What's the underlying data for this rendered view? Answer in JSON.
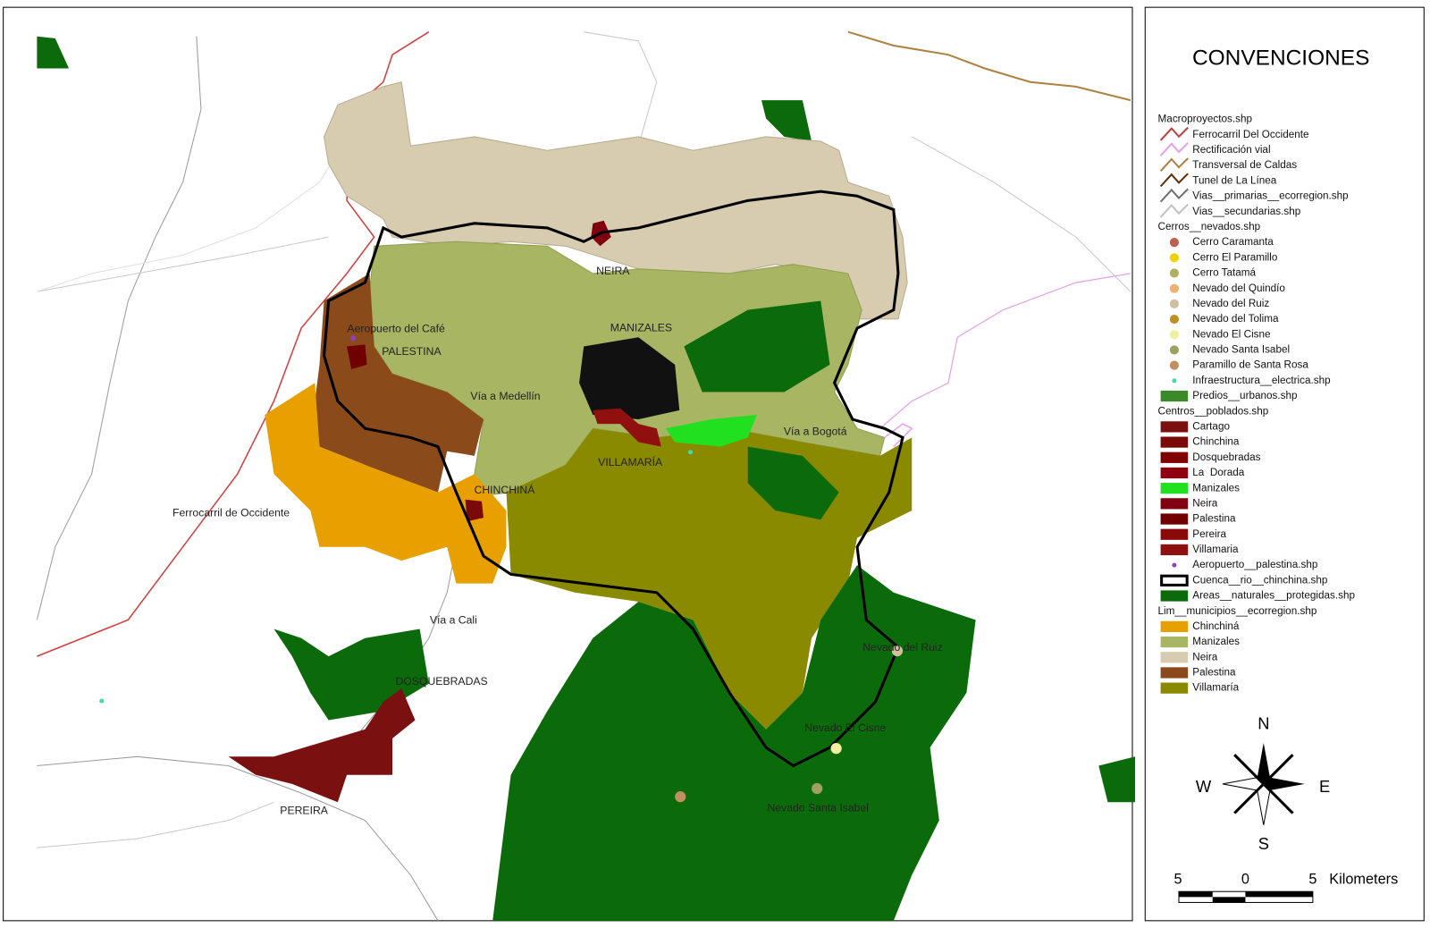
{
  "map": {
    "labels": [
      "NEIRA",
      "MANIZALES",
      "Aeropuerto del Café",
      "PALESTINA",
      "Vía a Medellín",
      "Vía a Bogotá",
      "VILLAMARÍA",
      "CHINCHINÁ",
      "Ferrocarril de Occidente",
      "Vía a Cali",
      "DOSQUEBRADAS",
      "Nevado del Ruiz",
      "Nevado El Cisne",
      "Nevado Santa Isabel",
      "PEREIRA"
    ]
  },
  "legend": {
    "title": "CONVENCIONES",
    "items": [
      {
        "text": "Macroproyectos.shp",
        "kind": "header"
      },
      {
        "text": "Ferrocarril Del Occidente",
        "kind": "line",
        "color": "#c04040"
      },
      {
        "text": "Rectificación vial",
        "kind": "line",
        "color": "#e8a0e8"
      },
      {
        "text": "Transversal de Caldas",
        "kind": "line",
        "color": "#b08040"
      },
      {
        "text": "Tunel de La Línea",
        "kind": "line",
        "color": "#603010"
      },
      {
        "text": "Vias__primarias__ecorregion.shp",
        "kind": "line",
        "color": "#707070"
      },
      {
        "text": "Vias__secundarias.shp",
        "kind": "line",
        "color": "#c0c0c0"
      },
      {
        "text": "Cerros__nevados.shp",
        "kind": "header"
      },
      {
        "text": "Cerro Caramanta",
        "kind": "dot",
        "color": "#c06050"
      },
      {
        "text": "Cerro El Paramillo",
        "kind": "dot",
        "color": "#f0d000"
      },
      {
        "text": "Cerro Tatamá",
        "kind": "dot",
        "color": "#b0b060"
      },
      {
        "text": "Nevado del Quindío",
        "kind": "dot",
        "color": "#f0b070"
      },
      {
        "text": "Nevado del Ruiz",
        "kind": "dot",
        "color": "#d0c0a0"
      },
      {
        "text": "Nevado del Tolima",
        "kind": "dot",
        "color": "#c09020"
      },
      {
        "text": "Nevado El Cisne",
        "kind": "dot",
        "color": "#f0f0a0"
      },
      {
        "text": "Nevado Santa Isabel",
        "kind": "dot",
        "color": "#a0a060"
      },
      {
        "text": "Paramillo de Santa Rosa",
        "kind": "dot",
        "color": "#c09060"
      },
      {
        "text": "Infraestructura__electrica.shp",
        "kind": "smalldot",
        "color": "#40e0a0"
      },
      {
        "text": "Predios__urbanos.shp",
        "kind": "box",
        "color": "#3a8a2a"
      },
      {
        "text": "Centros__poblados.shp",
        "kind": "header"
      },
      {
        "text": "Cartago",
        "kind": "box",
        "color": "#7a1010"
      },
      {
        "text": "Chinchina",
        "kind": "box",
        "color": "#7a0a0a"
      },
      {
        "text": "Dosquebradas",
        "kind": "box",
        "color": "#800000"
      },
      {
        "text": "La  Dorada",
        "kind": "box",
        "color": "#900010"
      },
      {
        "text": "Manizales",
        "kind": "box",
        "color": "#20e020"
      },
      {
        "text": "Neira",
        "kind": "box",
        "color": "#800010"
      },
      {
        "text": "Palestina",
        "kind": "box",
        "color": "#700000"
      },
      {
        "text": "Pereira",
        "kind": "box",
        "color": "#8a0a0a"
      },
      {
        "text": "Villamaria",
        "kind": "box",
        "color": "#901010"
      },
      {
        "text": "Aeropuerto__palestina.shp",
        "kind": "smalldot",
        "color": "#9040c0"
      },
      {
        "text": "Cuenca__rio__chinchina.shp",
        "kind": "outline",
        "color": "#000000"
      },
      {
        "text": "Areas__naturales__protegidas.shp",
        "kind": "box",
        "color": "#0b6b0b"
      },
      {
        "text": "Lim__municipios__ecorregion.shp",
        "kind": "header"
      },
      {
        "text": "Chinchiná",
        "kind": "box",
        "color": "#e8a000"
      },
      {
        "text": "Manizales",
        "kind": "box",
        "color": "#a8b562"
      },
      {
        "text": "Neira",
        "kind": "box",
        "color": "#d8ccb0"
      },
      {
        "text": "Palestina",
        "kind": "box",
        "color": "#8b4a1a"
      },
      {
        "text": "Villamaría",
        "kind": "box",
        "color": "#8a8a00"
      }
    ]
  },
  "north_arrow": {
    "n": "N",
    "s": "S",
    "e": "E",
    "w": "W"
  },
  "scale_bar": {
    "ticks": [
      5,
      0,
      5
    ],
    "unit": "Kilometers"
  }
}
